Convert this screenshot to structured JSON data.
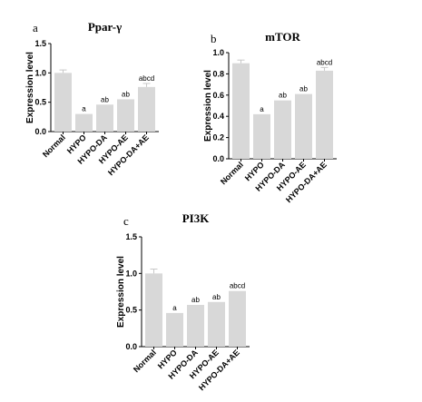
{
  "chart_data": [
    {
      "panel": "a",
      "type": "bar",
      "title": "Ppar-γ",
      "ylabel": "Expression level",
      "xlabel": "",
      "ylim": [
        0,
        1.5
      ],
      "yticks": [
        "0.0",
        "0.5",
        "1.0",
        "1.5"
      ],
      "categories": [
        "Normal",
        "HYPO",
        "HYPO-DA",
        "HYPO-AE",
        "HYPO-DA+AE"
      ],
      "values": [
        1.0,
        0.3,
        0.46,
        0.55,
        0.76
      ],
      "errors": [
        0.05,
        0.0,
        0.0,
        0.0,
        0.06
      ],
      "labels": [
        "",
        "a",
        "ab",
        "ab",
        "abcd"
      ],
      "bar_color": "#d8d8d8"
    },
    {
      "panel": "b",
      "type": "bar",
      "title": "mTOR",
      "ylabel": "Expression level",
      "xlabel": "",
      "ylim": [
        0,
        1.0
      ],
      "yticks": [
        "0.0",
        "0.2",
        "0.4",
        "0.6",
        "0.8",
        "1.0"
      ],
      "categories": [
        "Normal",
        "HYPO",
        "HYPO-DA",
        "HYPO-AE",
        "HYPO-DA+AE"
      ],
      "values": [
        0.9,
        0.42,
        0.55,
        0.61,
        0.83
      ],
      "errors": [
        0.03,
        0.0,
        0.0,
        0.0,
        0.03
      ],
      "labels": [
        "",
        "a",
        "ab",
        "ab",
        "abcd"
      ],
      "bar_color": "#d8d8d8"
    },
    {
      "panel": "c",
      "type": "bar",
      "title": "PI3K",
      "ylabel": "Expression level",
      "xlabel": "",
      "ylim": [
        0,
        1.5
      ],
      "yticks": [
        "0.0",
        "0.5",
        "1.0",
        "1.5"
      ],
      "categories": [
        "Normal",
        "HYPO",
        "HYPO-DA",
        "HYPO-AE",
        "HYPO-DA+AE"
      ],
      "values": [
        1.0,
        0.46,
        0.57,
        0.61,
        0.76
      ],
      "errors": [
        0.06,
        0.0,
        0.0,
        0.0,
        0.0
      ],
      "labels": [
        "",
        "a",
        "ab",
        "ab",
        "abcd"
      ],
      "bar_color": "#d8d8d8"
    }
  ]
}
